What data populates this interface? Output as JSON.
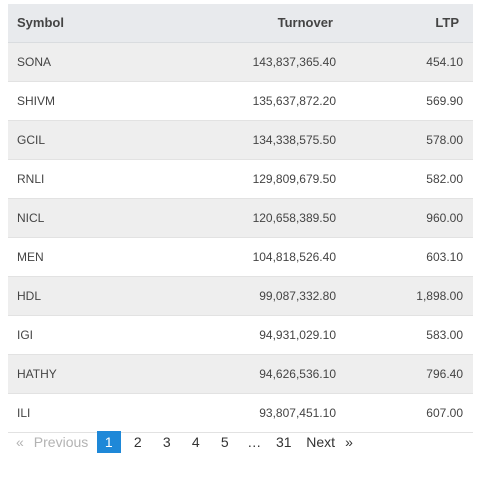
{
  "table": {
    "headers": {
      "symbol": "Symbol",
      "turnover": "Turnover",
      "ltp": "LTP"
    },
    "rows": [
      {
        "symbol": "SONA",
        "turnover": "143,837,365.40",
        "ltp": "454.10"
      },
      {
        "symbol": "SHIVM",
        "turnover": "135,637,872.20",
        "ltp": "569.90"
      },
      {
        "symbol": "GCIL",
        "turnover": "134,338,575.50",
        "ltp": "578.00"
      },
      {
        "symbol": "RNLI",
        "turnover": "129,809,679.50",
        "ltp": "582.00"
      },
      {
        "symbol": "NICL",
        "turnover": "120,658,389.50",
        "ltp": "960.00"
      },
      {
        "symbol": "MEN",
        "turnover": "104,818,526.40",
        "ltp": "603.10"
      },
      {
        "symbol": "HDL",
        "turnover": "99,087,332.80",
        "ltp": "1,898.00"
      },
      {
        "symbol": "IGI",
        "turnover": "94,931,029.10",
        "ltp": "583.00"
      },
      {
        "symbol": "HATHY",
        "turnover": "94,626,536.10",
        "ltp": "796.40"
      },
      {
        "symbol": "ILI",
        "turnover": "93,807,451.10",
        "ltp": "607.00"
      }
    ]
  },
  "pagination": {
    "prev_arrow": "«",
    "prev_label": "Previous",
    "pages": [
      "1",
      "2",
      "3",
      "4",
      "5"
    ],
    "current": "1",
    "ellipsis": "…",
    "last_page": "31",
    "next_label": "Next",
    "next_arrow": "»",
    "active_color": "#1e88d8"
  }
}
